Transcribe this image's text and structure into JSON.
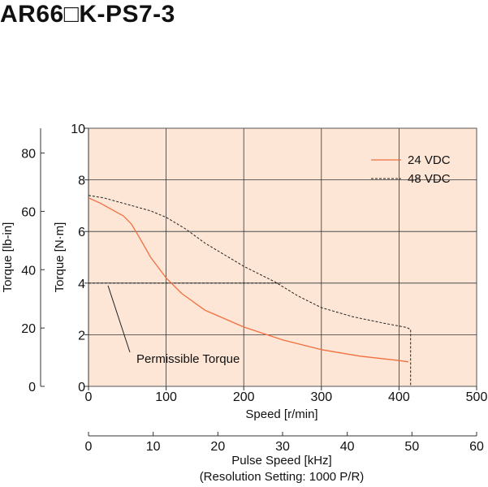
{
  "title": "AR66□K-PS7-3",
  "chart_data": {
    "type": "line",
    "xlabel": "Speed [r/min]",
    "ylabel": "Torque [N·m]",
    "y2label": "Torque [lb-in]",
    "x2label": "Pulse Speed [kHz]",
    "x2sublabel": "(Resolution Setting: 1000 P/R)",
    "xlim": [
      0,
      500
    ],
    "ylim": [
      0,
      10
    ],
    "y2lim": [
      0,
      88.5
    ],
    "x2lim": [
      0,
      60
    ],
    "xticks": [
      "0",
      "100",
      "200",
      "300",
      "400",
      "500"
    ],
    "yticks": [
      "0",
      "2",
      "4",
      "6",
      "8",
      "10"
    ],
    "y2ticks": [
      "0",
      "20",
      "40",
      "60",
      "80"
    ],
    "x2ticks": [
      "0",
      "10",
      "20",
      "30",
      "40",
      "50",
      "60"
    ],
    "grid": true,
    "legend_position": "top-right",
    "background_color": "#fde6d6",
    "series": [
      {
        "name": "24 VDC",
        "color": "#f07040",
        "style": "solid",
        "x": [
          0,
          15,
          30,
          45,
          55,
          65,
          80,
          100,
          120,
          150,
          200,
          250,
          300,
          350,
          400,
          412
        ],
        "y": [
          7.3,
          7.1,
          6.85,
          6.6,
          6.3,
          5.8,
          5.0,
          4.2,
          3.6,
          2.95,
          2.3,
          1.8,
          1.42,
          1.17,
          1.0,
          0.95
        ]
      },
      {
        "name": "48 VDC",
        "color": "#222222",
        "style": "dashed",
        "x": [
          0,
          20,
          50,
          80,
          100,
          125,
          150,
          175,
          200,
          240,
          270,
          300,
          340,
          380,
          410,
          415,
          415
        ],
        "y": [
          7.4,
          7.3,
          7.05,
          6.8,
          6.55,
          6.1,
          5.55,
          5.1,
          4.65,
          4.05,
          3.5,
          3.05,
          2.7,
          2.45,
          2.28,
          2.2,
          0
        ]
      }
    ],
    "permissible_torque": {
      "label": "Permissible Torque",
      "value": 4,
      "x_range": [
        0,
        248
      ]
    }
  }
}
